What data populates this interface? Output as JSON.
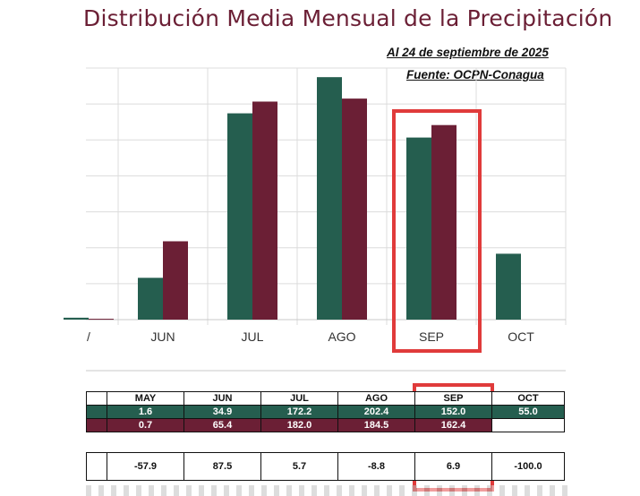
{
  "title": "Distribución Media Mensual de la Precipitación",
  "note_date": "Al 24 de septiembre de 2025",
  "note_source": "Fuente: OCPN-Conagua",
  "colors": {
    "series_a": "#255e4f",
    "series_b": "#6b1f35",
    "highlight": "#e03b3b",
    "grid": "#dcdcdc"
  },
  "chart_data": {
    "type": "bar",
    "categories": [
      "MAY",
      "JUN",
      "JUL",
      "AGO",
      "SEP",
      "OCT"
    ],
    "axis_tick_labels": [
      "/",
      "JUN",
      "JUL",
      "AGO",
      "SEP",
      "OCT"
    ],
    "series": [
      {
        "values": [
          1.6,
          34.9,
          172.2,
          202.4,
          152.0,
          55.0
        ]
      },
      {
        "values": [
          0.7,
          65.4,
          182.0,
          184.5,
          162.4,
          null
        ]
      }
    ],
    "ylim": [
      0,
      210
    ],
    "grid": true,
    "highlight_category": "SEP"
  },
  "table": {
    "headers": [
      "MAY",
      "JUN",
      "JUL",
      "AGO",
      "SEP",
      "OCT"
    ],
    "row_a": [
      "1.6",
      "34.9",
      "172.2",
      "202.4",
      "152.0",
      "55.0"
    ],
    "row_b": [
      "0.7",
      "65.4",
      "182.0",
      "184.5",
      "162.4",
      ""
    ],
    "row_c": [
      "-57.9",
      "87.5",
      "5.7",
      "-8.8",
      "6.9",
      "-100.0"
    ]
  }
}
